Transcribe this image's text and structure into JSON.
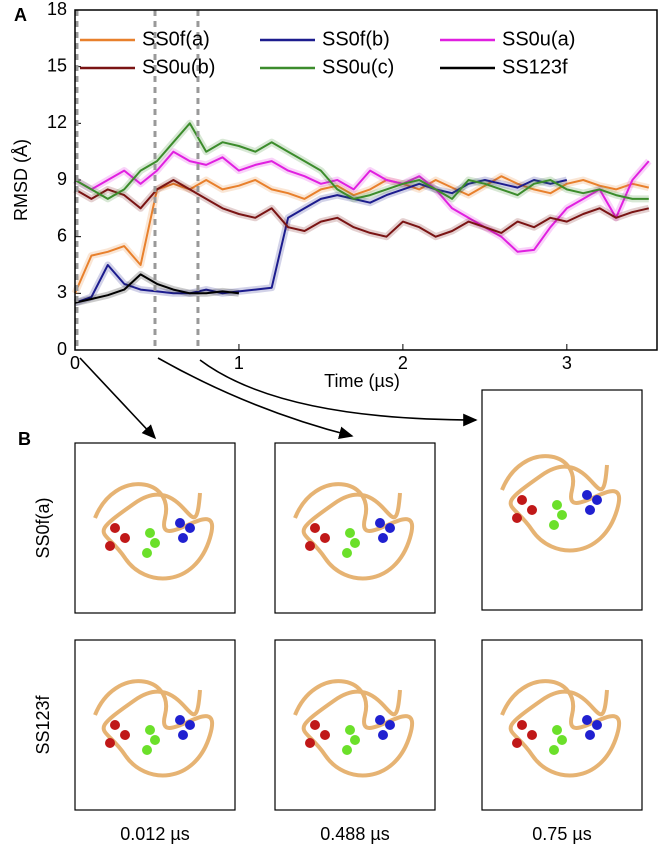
{
  "chart_data": {
    "type": "line",
    "panel_label": "A",
    "xlabel": "Time (µs)",
    "ylabel": "RMSD (Å)",
    "xlim": [
      0,
      3.55
    ],
    "ylim": [
      0,
      18
    ],
    "xticks": [
      0,
      1,
      2,
      3
    ],
    "yticks": [
      0,
      3,
      6,
      9,
      12,
      15,
      18
    ],
    "legend": "top",
    "vlines": [
      {
        "value": 0.012,
        "label": "0.012 µs"
      },
      {
        "value": 0.488,
        "label": "0.488 µs"
      },
      {
        "value": 0.75,
        "label": "0.75 µs"
      }
    ],
    "x": [
      0,
      0.1,
      0.2,
      0.3,
      0.4,
      0.5,
      0.6,
      0.7,
      0.8,
      0.9,
      1,
      1.1,
      1.2,
      1.3,
      1.4,
      1.5,
      1.6,
      1.7,
      1.8,
      1.9,
      2,
      2.1,
      2.2,
      2.3,
      2.4,
      2.5,
      2.6,
      2.7,
      2.8,
      2.9,
      3,
      3.1,
      3.2,
      3.3,
      3.4,
      3.5
    ],
    "series": [
      {
        "name": "SS0f(a)",
        "color": "#e8802c",
        "values": [
          3,
          5,
          5.2,
          5.5,
          4.5,
          8.5,
          8.8,
          8.5,
          9,
          8.5,
          8.7,
          9,
          8.5,
          8.3,
          8,
          8.5,
          8.7,
          8.2,
          8.5,
          9,
          8.8,
          8.5,
          9,
          8.6,
          8.2,
          8.7,
          9.2,
          8.8,
          8.5,
          8.3,
          8.8,
          9,
          8.7,
          8.5,
          8.8,
          8.6
        ]
      },
      {
        "name": "SS0f(b)",
        "color": "#1c1c8e",
        "values": [
          2.5,
          2.8,
          4.5,
          3.5,
          3.2,
          3.1,
          3,
          3,
          3.2,
          3,
          3.1,
          3.2,
          3.3,
          7,
          7.5,
          8,
          8.2,
          8,
          7.8,
          8.2,
          8.5,
          8.8,
          8.5,
          8.3,
          8.8,
          9,
          8.8,
          8.6,
          9,
          8.8,
          9,
          null,
          null,
          null,
          null,
          null
        ]
      },
      {
        "name": "SS0u(a)",
        "color": "#e020e0",
        "values": [
          9,
          8.5,
          9,
          9.5,
          8.8,
          9.5,
          10.5,
          10,
          9.8,
          10.2,
          9.5,
          9.8,
          10,
          9.5,
          9.2,
          8.8,
          9,
          8.5,
          9.5,
          9,
          8.8,
          9.2,
          8.5,
          7.5,
          7,
          6.5,
          6,
          5.2,
          5.3,
          6.5,
          7.5,
          8,
          8.5,
          7,
          9,
          10
        ]
      },
      {
        "name": "SS0u(b)",
        "color": "#7a1414",
        "values": [
          8.5,
          8,
          8.5,
          8.2,
          7.5,
          8.5,
          9,
          8.5,
          8,
          7.5,
          7.2,
          7,
          7.5,
          6.5,
          6.3,
          6.8,
          7,
          6.5,
          6.2,
          6,
          6.8,
          6.5,
          6,
          6.3,
          6.8,
          6.5,
          6.2,
          6.8,
          6.5,
          7,
          6.8,
          7.2,
          7.5,
          7,
          7.3,
          7.5
        ]
      },
      {
        "name": "SS0u(c)",
        "color": "#3c8c2c",
        "values": [
          9,
          8.5,
          8,
          8.5,
          9.5,
          10,
          11,
          12,
          10.5,
          11,
          10.8,
          10.5,
          11,
          10.5,
          10,
          9.5,
          8.5,
          8,
          8.2,
          8.5,
          8.8,
          9,
          8.5,
          8,
          9,
          8.8,
          8.5,
          8.2,
          8.8,
          9,
          8.5,
          8.3,
          8.5,
          8.2,
          8,
          8
        ]
      },
      {
        "name": "SS123f",
        "color": "#000000",
        "values": [
          2.5,
          2.7,
          2.9,
          3.2,
          4,
          3.5,
          3.2,
          3,
          3,
          3.1,
          3,
          null,
          null,
          null,
          null,
          null,
          null,
          null,
          null,
          null,
          null,
          null,
          null,
          null,
          null,
          null,
          null,
          null,
          null,
          null,
          null,
          null,
          null,
          null,
          null,
          null
        ]
      }
    ]
  },
  "panel_b": {
    "panel_label": "B",
    "rows": [
      "SS0f(a)",
      "SS123f"
    ]
  }
}
